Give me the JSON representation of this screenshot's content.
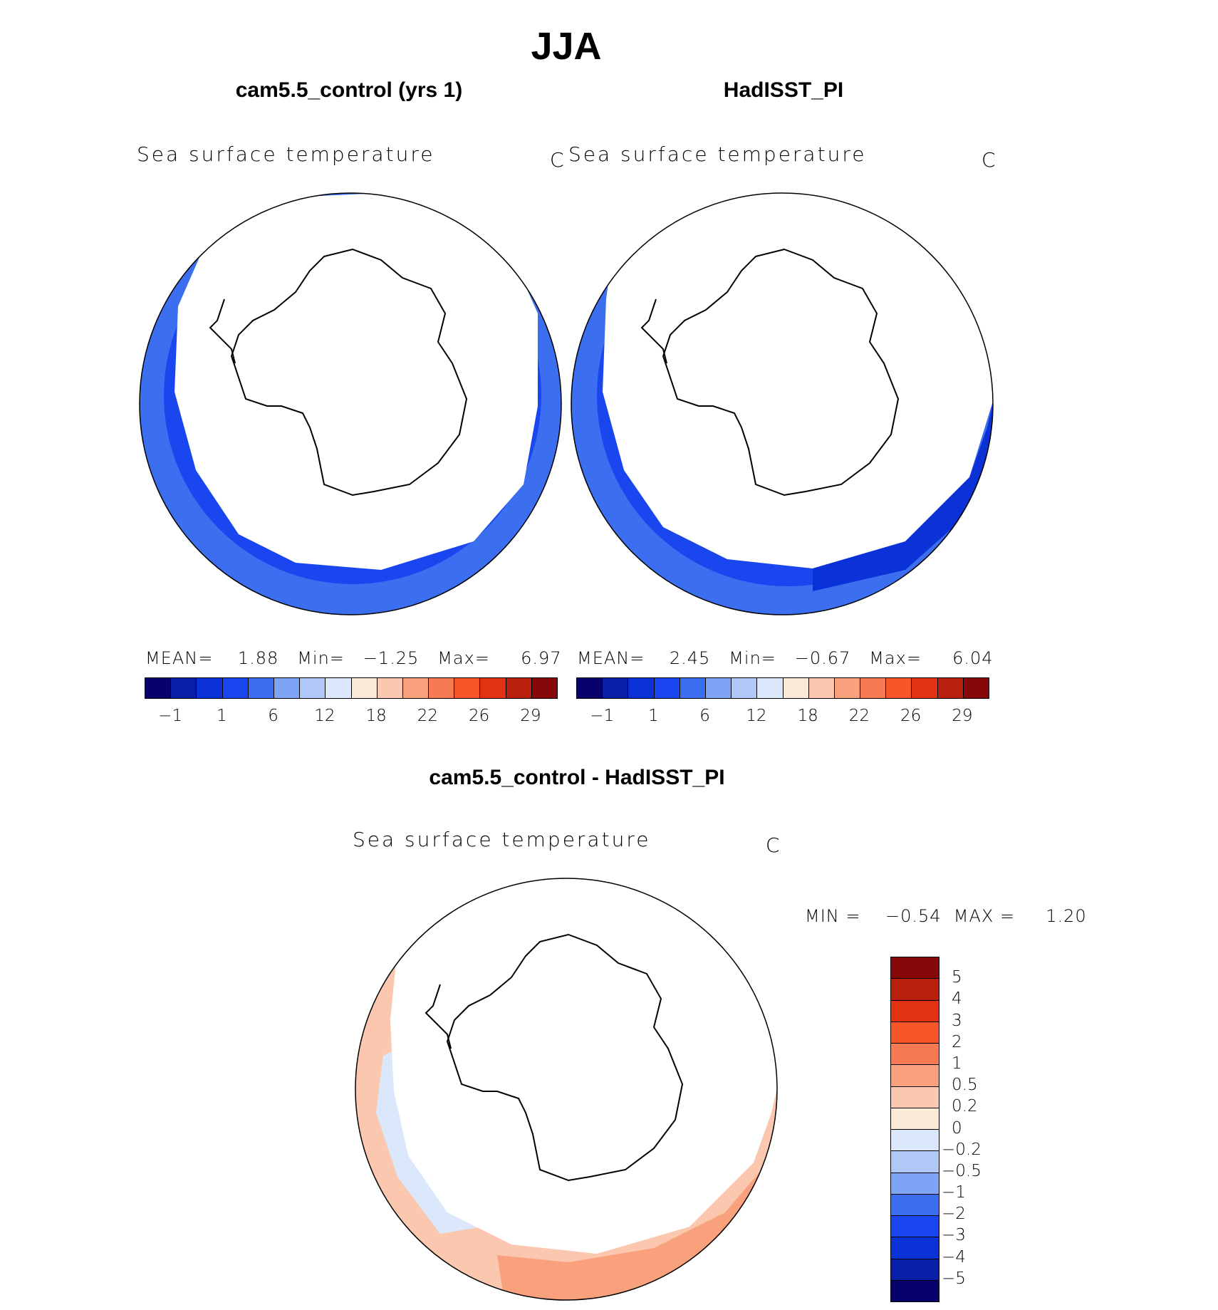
{
  "title": "JJA",
  "panels": [
    {
      "id": "model",
      "title": "cam5.5_control (yrs 1)",
      "variable": "Sea surface temperature",
      "units": "C",
      "stats": "MEAN=    1.88   Min=   −1.25   Max=     6.97"
    },
    {
      "id": "obs",
      "title": "HadISST_PI",
      "variable": "Sea surface temperature",
      "units": "C",
      "stats": "MEAN=    2.45   Min=   −0.67   Max=     6.04"
    },
    {
      "id": "diff",
      "title": "cam5.5_control - HadISST_PI",
      "variable": "Sea surface temperature",
      "units": "C",
      "stats": "MIN =    −0.54  MAX =     1.20"
    }
  ],
  "colorbar_main": {
    "colors": [
      "#08006b",
      "#0a1fa8",
      "#0b32d6",
      "#1a46f0",
      "#3b6ff0",
      "#7fa4f5",
      "#b0c8f8",
      "#dbe8fb",
      "#fde9d8",
      "#fbc7ae",
      "#f9a07d",
      "#f87a52",
      "#f7562b",
      "#e23212",
      "#b81f0c",
      "#870808"
    ],
    "ticks": [
      "−1",
      "1",
      "6",
      "12",
      "18",
      "22",
      "26",
      "29"
    ]
  },
  "colorbar_diff": {
    "colors": [
      "#870808",
      "#b81f0c",
      "#e23212",
      "#f7562b",
      "#f87a52",
      "#f9a07d",
      "#fbc7ae",
      "#fde9d8",
      "#dbe8fb",
      "#b0c8f8",
      "#7fa4f5",
      "#3b6ff0",
      "#1a46f0",
      "#0b32d6",
      "#0a1fa8",
      "#08006b"
    ],
    "labels": [
      "5",
      "4",
      "3",
      "2",
      "1",
      "0.5",
      "0.2",
      "0",
      "−0.2",
      "−0.5",
      "−1",
      "−2",
      "−3",
      "−4",
      "−5"
    ]
  },
  "map_colors": {
    "cold_deep": "#0b32d6",
    "cold_mid": "#1a46f0",
    "cool": "#3b6ff0",
    "diff_warm": "#f9a07d",
    "diff_warm_light": "#fbc7ae",
    "diff_cool": "#dbe8fb",
    "diff_cool_mid": "#b0c8f8"
  }
}
